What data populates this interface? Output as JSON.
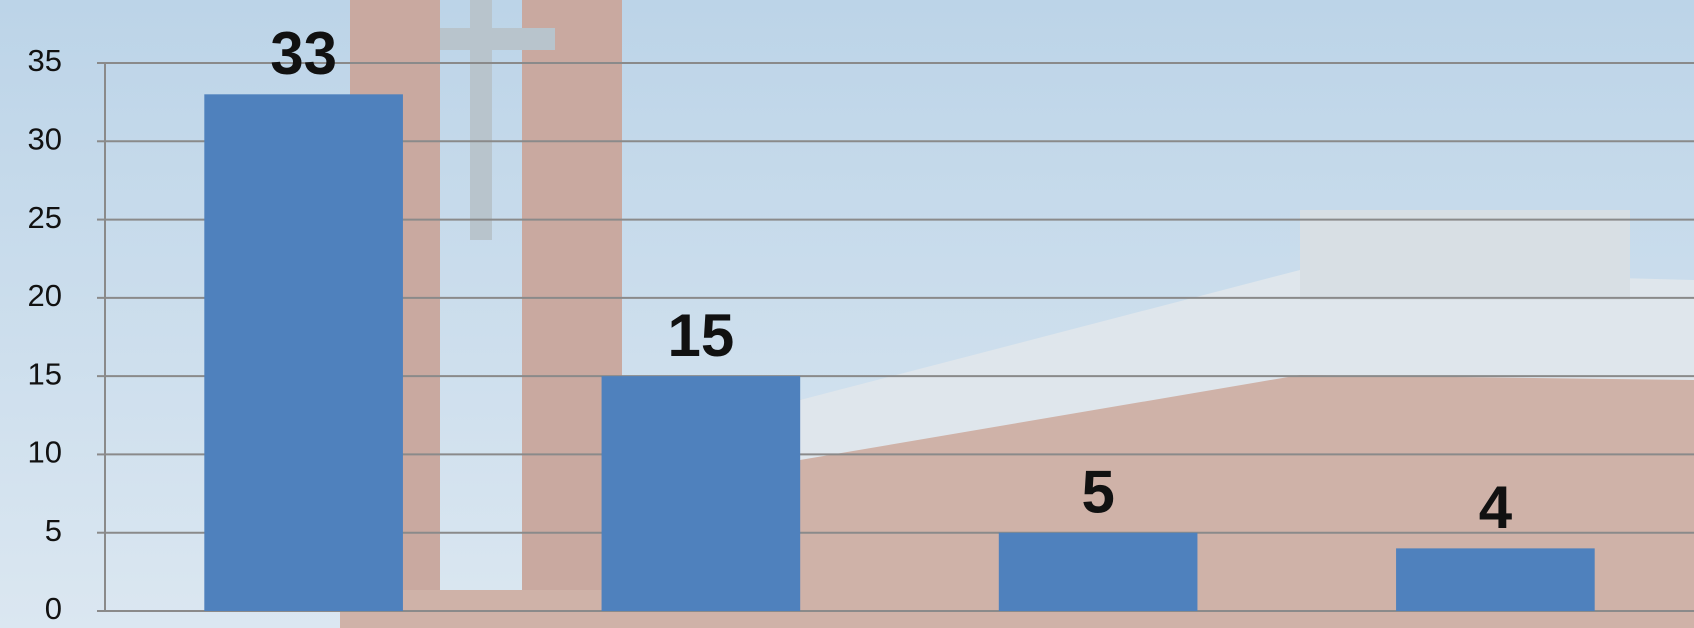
{
  "chart_data": {
    "type": "bar",
    "categories": [
      null,
      null,
      null,
      null
    ],
    "values": [
      33,
      15,
      5,
      4
    ],
    "color": "#4f81bd",
    "ylim": [
      0,
      35
    ],
    "yticks": [
      0,
      5,
      10,
      15,
      20,
      25,
      30,
      35
    ],
    "grid": true
  }
}
